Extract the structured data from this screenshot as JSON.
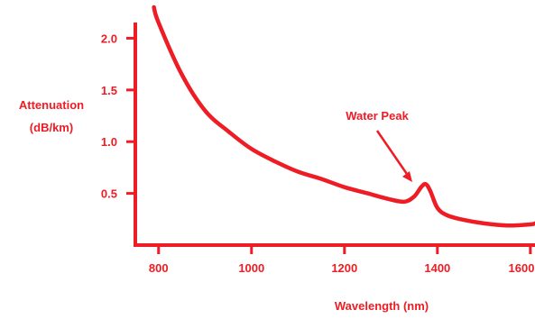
{
  "chart_data": {
    "type": "line",
    "title": "",
    "xlabel": "Wavelength (nm)",
    "ylabel_lines": [
      "Attenuation",
      "(dB/km)"
    ],
    "xlim": [
      750,
      1610
    ],
    "ylim": [
      0,
      2.3
    ],
    "x_ticks": [
      800,
      1000,
      1200,
      1400,
      1600
    ],
    "x_tick_labels": [
      "800",
      "1000",
      "1200",
      "1400",
      "1600"
    ],
    "y_ticks": [
      0.5,
      1.0,
      1.5,
      2.0
    ],
    "y_tick_labels": [
      "0.5",
      "1.0",
      "1.5",
      "2.0"
    ],
    "grid": false,
    "color": "#ee1c24",
    "annotation": {
      "text": "Water Peak",
      "x": 1380,
      "y": 0.58
    },
    "series": [
      {
        "x": [
          790,
          800,
          850,
          900,
          950,
          1000,
          1050,
          1100,
          1150,
          1200,
          1250,
          1300,
          1330,
          1350,
          1365,
          1375,
          1385,
          1400,
          1420,
          1450,
          1500,
          1550,
          1600,
          1610
        ],
        "y": [
          2.3,
          2.15,
          1.65,
          1.3,
          1.1,
          0.93,
          0.81,
          0.71,
          0.64,
          0.56,
          0.5,
          0.44,
          0.42,
          0.47,
          0.56,
          0.59,
          0.52,
          0.36,
          0.29,
          0.25,
          0.21,
          0.19,
          0.2,
          0.21
        ]
      }
    ]
  }
}
